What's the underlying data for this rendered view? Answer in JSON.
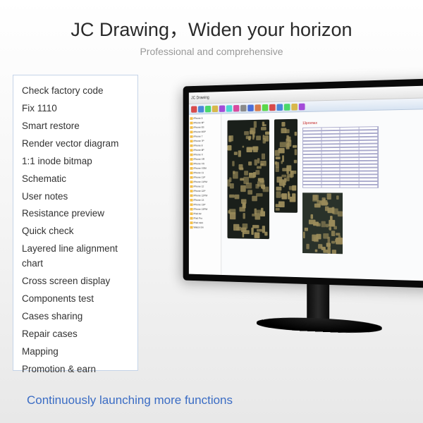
{
  "title": "JC Drawing，Widen your horizon",
  "subtitle": "Professional and comprehensive",
  "features": [
    "Check factory code",
    "Fix 1110",
    "Smart restore",
    "Render vector diagram",
    "1:1 inode bitmap",
    "Schematic",
    "User notes",
    "Resistance preview",
    "Quick check",
    "Layered line alignment chart",
    "Cross screen display",
    "Components test",
    "Cases sharing",
    "Repair cases",
    "Mapping",
    "Promotion & earn"
  ],
  "footer": "Continuously launching more functions",
  "software": {
    "window_title": "JC Drawing",
    "toolbar_colors": [
      "#d84b4b",
      "#4b88d8",
      "#4bd86a",
      "#d8b84b",
      "#a34bd8",
      "#4bd8d0",
      "#d84b9f",
      "#8a8a8a",
      "#4b6fd8",
      "#d87c4b",
      "#5cd84b",
      "#d84b4b",
      "#4b88d8",
      "#4bd86a",
      "#d8b84b",
      "#a34bd8"
    ],
    "tree_items": [
      "iPhone 6",
      "iPhone 6P",
      "iPhone 6S",
      "iPhone 6SP",
      "iPhone 7",
      "iPhone 7P",
      "iPhone 8",
      "iPhone 8P",
      "iPhone X",
      "iPhone XR",
      "iPhone XS",
      "iPhone XSM",
      "iPhone 11",
      "iPhone 11P",
      "iPhone 11PM",
      "iPhone 12",
      "iPhone 12P",
      "iPhone 12PM",
      "iPhone 13",
      "iPhone 13P",
      "iPhone 13PM",
      "iPad Air",
      "iPad Pro",
      "iPad mini",
      "Watch S4"
    ],
    "panel_title": "13promax",
    "spec_count": 18
  },
  "colors": {
    "title": "#2a2a2a",
    "subtitle": "#999999",
    "feature_text": "#333333",
    "feature_border": "#c5d4e8",
    "footer": "#3a6cc4",
    "pcb_bg": "#1a1f1a",
    "pcb_component": "#9a8b5a"
  }
}
